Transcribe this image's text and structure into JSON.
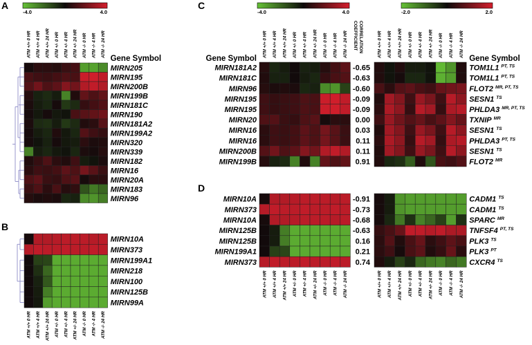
{
  "figure": {
    "col_labels": [
      "ATM +/+ 0 HR",
      "ATM +/+ 4 HR",
      "ATM +/+ 24 HR",
      "ATM +/- 0 HR",
      "ATM +/- 4 HR",
      "ATM +/- 24 HR",
      "ATM -/- 0 HR",
      "ATM -/- 4 HR",
      "ATM -/- 24 HR"
    ],
    "gene_symbol_header": "Gene Symbol",
    "corr_header_line1": "CORRELATION",
    "corr_header_line2": "COEFFICIENT",
    "colors": {
      "low": "#66c236",
      "mid": "#0d0a0a",
      "high": "#d41e2c",
      "dendrogram": "#8d8cc8"
    }
  },
  "chart_data": [
    {
      "panel": "A",
      "type": "heatmap",
      "scale": {
        "min": -4.0,
        "max": 4.0,
        "min_label": "-4.0",
        "max_label": "4.0"
      },
      "rows": [
        {
          "gene": "MIRN205",
          "values": [
            0.2,
            0.6,
            0.6,
            0.5,
            0.9,
            1.1,
            -3.2,
            -3.3,
            -2.8
          ]
        },
        {
          "gene": "MIRN195",
          "values": [
            1.2,
            1.0,
            0.9,
            1.1,
            1.3,
            1.2,
            3.8,
            3.9,
            3.6
          ]
        },
        {
          "gene": "MIRN200B",
          "values": [
            1.4,
            2.0,
            1.3,
            1.6,
            2.4,
            2.0,
            3.3,
            3.6,
            3.3
          ]
        },
        {
          "gene": "MIRN199B",
          "values": [
            0.5,
            -0.5,
            -0.7,
            -0.4,
            -2.6,
            0.4,
            1.7,
            1.3,
            1.7
          ]
        },
        {
          "gene": "MIRN181C",
          "values": [
            0.3,
            -0.4,
            -0.6,
            0.2,
            -1.0,
            -0.7,
            0.8,
            1.1,
            1.4
          ]
        },
        {
          "gene": "MIRN190",
          "values": [
            0.2,
            -0.3,
            0.2,
            -0.3,
            -0.2,
            1.2,
            1.5,
            1.7,
            2.0
          ]
        },
        {
          "gene": "MIRN181A2",
          "values": [
            0.3,
            -0.7,
            -0.8,
            -0.4,
            -1.0,
            -0.7,
            0.4,
            0.6,
            1.5
          ]
        },
        {
          "gene": "MIRN199A2",
          "values": [
            0.2,
            -0.4,
            -0.6,
            0.4,
            -0.3,
            -0.6,
            1.4,
            1.0,
            0.8
          ]
        },
        {
          "gene": "MIRN320",
          "values": [
            0.2,
            -0.2,
            -0.5,
            0.2,
            -0.3,
            -0.4,
            0.6,
            0.3,
            0.4
          ]
        },
        {
          "gene": "MIRN339",
          "values": [
            -2.6,
            -0.4,
            -0.6,
            -0.3,
            -0.2,
            -0.6,
            0.3,
            0.2,
            0.5
          ]
        },
        {
          "gene": "MIRN182",
          "values": [
            0.4,
            0.8,
            1.3,
            0.6,
            0.4,
            1.0,
            -0.4,
            -0.2,
            0.3
          ]
        },
        {
          "gene": "MIRN16",
          "values": [
            0.6,
            1.0,
            0.9,
            1.1,
            1.6,
            1.3,
            2.1,
            1.5,
            0.9
          ]
        },
        {
          "gene": "MIRN20A",
          "values": [
            1.3,
            1.6,
            0.9,
            0.8,
            1.3,
            1.5,
            0.2,
            0.6,
            0.6
          ]
        },
        {
          "gene": "MIRN183",
          "values": [
            0.9,
            1.3,
            0.6,
            1.2,
            0.5,
            0.7,
            -1.6,
            -2.4,
            -2.0
          ]
        },
        {
          "gene": "MIRN96",
          "values": [
            0.5,
            0.3,
            0.4,
            0.3,
            -0.6,
            -0.5,
            -2.8,
            -3.0,
            -2.5
          ]
        }
      ]
    },
    {
      "panel": "B",
      "type": "heatmap",
      "rows": [
        {
          "gene": "MIRN10A",
          "values": [
            0.2,
            3.3,
            3.3,
            3.4,
            3.5,
            3.5,
            3.5,
            3.4,
            3.5
          ]
        },
        {
          "gene": "MIRN373",
          "values": [
            3.4,
            3.6,
            3.5,
            3.5,
            3.6,
            3.5,
            3.5,
            3.6,
            3.5
          ]
        },
        {
          "gene": "MIRN199A1",
          "values": [
            0.1,
            -1.2,
            -1.3,
            -3.5,
            -3.5,
            -3.5,
            -3.5,
            -3.5,
            -3.5
          ]
        },
        {
          "gene": "MIRN218",
          "values": [
            0.1,
            -0.8,
            -2.0,
            -3.5,
            -3.5,
            -3.5,
            -3.5,
            -3.5,
            -3.5
          ]
        },
        {
          "gene": "MIRN100",
          "values": [
            0.1,
            -0.5,
            -1.7,
            -3.5,
            -3.5,
            -3.5,
            -3.5,
            -3.5,
            -3.5
          ]
        },
        {
          "gene": "MIRN125B",
          "values": [
            0.1,
            -0.4,
            -2.5,
            -3.5,
            -3.5,
            -3.5,
            -3.5,
            -3.5,
            -3.5
          ]
        },
        {
          "gene": "MIRN99A",
          "values": [
            0.1,
            -0.3,
            -3.2,
            -3.5,
            -3.5,
            -3.5,
            -3.5,
            -3.5,
            -3.5
          ]
        }
      ]
    },
    {
      "panel": "C",
      "type": "heatmap",
      "scale_left": {
        "min": -4.0,
        "max": 4.0,
        "min_label": "-4.0",
        "max_label": "4.0"
      },
      "scale_right": {
        "min": -2.0,
        "max": 2.0,
        "min_label": "-2.0",
        "max_label": "2.0"
      },
      "rows": [
        {
          "gene": "MIRN181A2",
          "coef": "-0.65",
          "target": "TOM1L1",
          "target_sup": "PT, TS",
          "mirna_values": [
            0.5,
            -0.6,
            -0.4,
            0.1,
            -0.5,
            -0.4,
            0.5,
            1.1,
            1.6
          ],
          "target_values": [
            0.2,
            -0.1,
            0.2,
            -0.2,
            -0.2,
            -0.1,
            -1.9,
            -1.5,
            0.2
          ]
        },
        {
          "gene": "MIRN181C",
          "coef": "-0.63",
          "target": "TOM1L1",
          "target_sup": "PT, TS",
          "mirna_values": [
            0.4,
            -0.5,
            -0.5,
            0.1,
            -0.4,
            -0.6,
            0.8,
            1.2,
            1.4
          ],
          "target_values": [
            0.2,
            -0.1,
            0.1,
            -0.3,
            -0.3,
            -0.1,
            -1.8,
            -1.6,
            0.2
          ]
        },
        {
          "gene": "MIRN96",
          "coef": "-0.60",
          "target": "FLOT2",
          "target_sup": "MR, PT, TS",
          "mirna_values": [
            0.5,
            0.3,
            0.4,
            0.3,
            -0.6,
            -0.5,
            -2.8,
            -3.0,
            -1.2
          ],
          "target_values": [
            0.6,
            0.3,
            0.7,
            0.8,
            0.6,
            0.5,
            0.9,
            1.0,
            1.1
          ]
        },
        {
          "gene": "MIRN195",
          "coef": "-0.09",
          "target": "SESN1",
          "target_sup": "TS",
          "mirna_values": [
            1.0,
            0.8,
            0.9,
            1.0,
            1.3,
            1.2,
            3.8,
            3.9,
            3.6
          ],
          "target_values": [
            0.2,
            1.5,
            1.2,
            0.5,
            1.4,
            1.1,
            0.5,
            1.7,
            1.3
          ]
        },
        {
          "gene": "MIRN195",
          "coef": "-0.09",
          "target": "PHLDA3",
          "target_sup": "MR, PT, TS",
          "mirna_values": [
            1.0,
            0.8,
            0.9,
            1.0,
            1.3,
            1.2,
            3.8,
            3.9,
            3.6
          ],
          "target_values": [
            0.3,
            1.6,
            1.3,
            0.4,
            1.7,
            1.5,
            0.4,
            1.6,
            1.7
          ]
        },
        {
          "gene": "MIRN20",
          "coef": "0.00",
          "target": "TXNIP",
          "target_sup": "MR",
          "mirna_values": [
            1.3,
            1.4,
            0.9,
            0.8,
            1.3,
            1.5,
            0.2,
            0.6,
            0.6
          ],
          "target_values": [
            0.5,
            1.4,
            1.0,
            0.7,
            0.9,
            0.6,
            0.8,
            1.2,
            0.9
          ]
        },
        {
          "gene": "MIRN16",
          "coef": "0.03",
          "target": "SESN1",
          "target_sup": "TS",
          "mirna_values": [
            0.6,
            1.0,
            0.9,
            1.1,
            1.6,
            1.3,
            2.1,
            1.5,
            0.9
          ],
          "target_values": [
            0.2,
            1.5,
            1.2,
            0.5,
            1.4,
            1.1,
            0.5,
            1.7,
            1.3
          ]
        },
        {
          "gene": "MIRN16",
          "coef": "0.11",
          "target": "PHLDA3",
          "target_sup": "PT, TS",
          "mirna_values": [
            0.6,
            1.0,
            0.9,
            1.1,
            1.6,
            1.3,
            2.1,
            1.5,
            0.9
          ],
          "target_values": [
            0.3,
            1.6,
            1.3,
            0.4,
            1.7,
            1.5,
            0.4,
            1.6,
            1.7
          ]
        },
        {
          "gene": "MIRN200B",
          "coef": "0.11",
          "target": "SESN1",
          "target_sup": "TS",
          "mirna_values": [
            1.4,
            2.0,
            1.3,
            1.6,
            2.4,
            2.0,
            3.3,
            3.6,
            3.3
          ],
          "target_values": [
            0.2,
            1.5,
            1.2,
            0.5,
            1.4,
            1.1,
            0.5,
            1.7,
            1.3
          ]
        },
        {
          "gene": "MIRN199B",
          "coef": "0.91",
          "target": "FLOT2",
          "target_sup": "MR",
          "mirna_values": [
            0.5,
            -0.5,
            -0.7,
            -2.6,
            0.4,
            -2.6,
            1.7,
            1.3,
            1.7
          ],
          "target_values": [
            0.2,
            -0.3,
            -0.4,
            -0.9,
            0.2,
            -0.8,
            0.6,
            0.5,
            0.7
          ]
        }
      ]
    },
    {
      "panel": "D",
      "type": "heatmap",
      "rows": [
        {
          "gene": "MIRN10A",
          "coef": "-0.91",
          "target": "CADM1",
          "target_sup": "TS",
          "mirna_values": [
            0.2,
            3.3,
            3.3,
            3.4,
            3.5,
            3.5,
            3.5,
            3.4,
            3.5
          ],
          "target_values": [
            0.1,
            -0.2,
            -1.5,
            -1.6,
            -1.6,
            -1.6,
            -1.6,
            -1.6,
            -1.6
          ]
        },
        {
          "gene": "MIRN373",
          "coef": "-0.73",
          "target": "CADM1",
          "target_sup": "TS",
          "mirna_values": [
            3.4,
            3.6,
            3.5,
            3.5,
            3.6,
            3.5,
            3.5,
            3.6,
            3.5
          ],
          "target_values": [
            0.1,
            -0.2,
            -1.5,
            -1.6,
            -1.6,
            -1.6,
            -1.6,
            -1.6,
            -1.6
          ]
        },
        {
          "gene": "MIRN10A",
          "coef": "-0.68",
          "target": "SPARC",
          "target_sup": "MR",
          "mirna_values": [
            0.2,
            3.3,
            3.3,
            3.4,
            3.5,
            3.5,
            3.5,
            3.4,
            3.5
          ],
          "target_values": [
            0.1,
            -0.3,
            -1.2,
            -0.4,
            -1.3,
            -1.0,
            -0.6,
            -1.6,
            -0.4
          ]
        },
        {
          "gene": "MIRN125B",
          "coef": "-0.63",
          "target": "TNFSF4",
          "target_sup": "PT, TS",
          "mirna_values": [
            0.1,
            -0.4,
            -2.5,
            -3.5,
            -3.5,
            -3.5,
            -3.5,
            -3.5,
            -3.5
          ],
          "target_values": [
            0.4,
            0.6,
            0.9,
            1.8,
            1.8,
            1.7,
            1.8,
            1.6,
            1.6
          ]
        },
        {
          "gene": "MIRN125B",
          "coef": "0.16",
          "target": "PLK3",
          "target_sup": "TS",
          "mirna_values": [
            0.1,
            -0.4,
            -2.5,
            -3.5,
            -3.5,
            -3.5,
            -3.5,
            -3.5,
            -3.5
          ],
          "target_values": [
            0.3,
            0.7,
            0.2,
            0.6,
            0.9,
            0.3,
            0.5,
            0.8,
            0.6
          ]
        },
        {
          "gene": "MIRN199A1",
          "coef": "0.21",
          "target": "PLK3",
          "target_sup": "PT",
          "mirna_values": [
            0.1,
            -1.2,
            -1.3,
            -3.5,
            -3.5,
            -3.5,
            -3.5,
            -3.5,
            -3.5
          ],
          "target_values": [
            0.3,
            0.5,
            0.1,
            0.6,
            0.8,
            0.2,
            0.4,
            0.9,
            0.3
          ]
        },
        {
          "gene": "MIRN373",
          "coef": "0.74",
          "target": "CXCR4",
          "target_sup": "TS",
          "mirna_values": [
            3.4,
            3.6,
            3.5,
            3.5,
            3.6,
            3.5,
            3.5,
            3.6,
            3.5
          ],
          "target_values": [
            0.2,
            -0.2,
            -0.6,
            -0.3,
            -1.0,
            -1.2,
            -1.3,
            -1.0,
            -1.2
          ]
        }
      ]
    }
  ]
}
